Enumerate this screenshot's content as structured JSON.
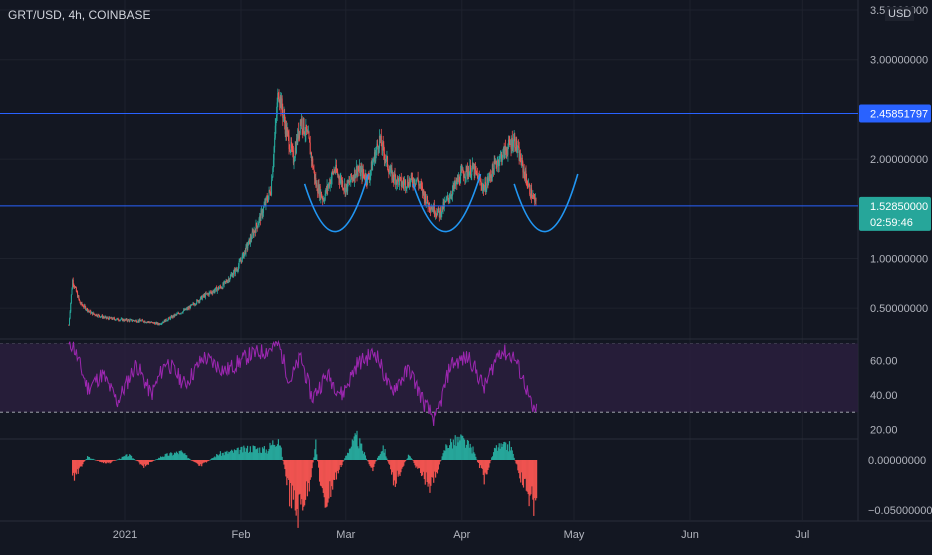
{
  "header": {
    "symbol": "GRT/USD, 4h, COINBASE",
    "currency": "USD"
  },
  "colors": {
    "background": "#131722",
    "grid": "#1e222d",
    "axis_text": "#b2b5be",
    "up": "#26a69a",
    "down": "#ef5350",
    "level_line": "#2962ff",
    "pattern": "#2196f3",
    "rsi": "#9c27b0",
    "rsi_band": "#2a1f3d",
    "price_tag": "#2962ff",
    "last_tag": "#26a69a"
  },
  "chart_data": [
    {
      "type": "candlestick",
      "name": "price",
      "ylim": [
        0.3,
        3.5
      ],
      "y_ticks": [
        {
          "value": 3.5,
          "label": "3.50000000"
        },
        {
          "value": 3.0,
          "label": "3.00000000"
        },
        {
          "value": 2.0,
          "label": "2.00000000"
        },
        {
          "value": 1.0,
          "label": "1.00000000"
        },
        {
          "value": 0.5,
          "label": "0.50000000"
        }
      ],
      "x_ticks": [
        "2021",
        "Feb",
        "Mar",
        "Apr",
        "May",
        "Jun",
        "Jul"
      ],
      "close_path": [
        [
          "2020-12-17",
          0.33
        ],
        [
          "2020-12-18",
          0.78
        ],
        [
          "2020-12-20",
          0.55
        ],
        [
          "2020-12-23",
          0.45
        ],
        [
          "2020-12-27",
          0.4
        ],
        [
          "2021-01-01",
          0.38
        ],
        [
          "2021-01-06",
          0.37
        ],
        [
          "2021-01-10",
          0.34
        ],
        [
          "2021-01-13",
          0.4
        ],
        [
          "2021-01-18",
          0.5
        ],
        [
          "2021-01-22",
          0.62
        ],
        [
          "2021-01-27",
          0.72
        ],
        [
          "2021-01-31",
          0.9
        ],
        [
          "2021-02-03",
          1.15
        ],
        [
          "2021-02-06",
          1.4
        ],
        [
          "2021-02-09",
          1.7
        ],
        [
          "2021-02-11",
          2.7
        ],
        [
          "2021-02-13",
          2.3
        ],
        [
          "2021-02-15",
          2.0
        ],
        [
          "2021-02-17",
          2.4
        ],
        [
          "2021-02-19",
          2.2
        ],
        [
          "2021-02-21",
          1.75
        ],
        [
          "2021-02-23",
          1.6
        ],
        [
          "2021-02-26",
          1.9
        ],
        [
          "2021-03-01",
          1.7
        ],
        [
          "2021-03-04",
          1.9
        ],
        [
          "2021-03-07",
          1.8
        ],
        [
          "2021-03-10",
          2.2
        ],
        [
          "2021-03-13",
          1.85
        ],
        [
          "2021-03-16",
          1.75
        ],
        [
          "2021-03-20",
          1.8
        ],
        [
          "2021-03-23",
          1.55
        ],
        [
          "2021-03-26",
          1.45
        ],
        [
          "2021-03-29",
          1.65
        ],
        [
          "2021-04-01",
          1.85
        ],
        [
          "2021-04-04",
          1.9
        ],
        [
          "2021-04-07",
          1.7
        ],
        [
          "2021-04-10",
          1.95
        ],
        [
          "2021-04-13",
          2.1
        ],
        [
          "2021-04-15",
          2.2
        ],
        [
          "2021-04-17",
          1.95
        ],
        [
          "2021-04-19",
          1.7
        ],
        [
          "2021-04-21",
          1.53
        ]
      ],
      "levels": [
        {
          "value": 2.45851797,
          "label": "2.45851797"
        },
        {
          "value": 1.5285,
          "label": "1.52850000",
          "countdown": "02:59:46"
        }
      ],
      "pattern_arcs": [
        {
          "from": "2021-02-18",
          "to": "2021-03-07"
        },
        {
          "from": "2021-03-19",
          "to": "2021-04-06"
        },
        {
          "from": "2021-04-15",
          "to": "2021-05-02"
        }
      ]
    },
    {
      "type": "line",
      "name": "rsi",
      "ylim": [
        15,
        72
      ],
      "band": [
        30,
        70
      ],
      "y_ticks": [
        {
          "value": 60,
          "label": "60.00"
        },
        {
          "value": 40,
          "label": "40.00"
        },
        {
          "value": 20,
          "label": "20.00"
        }
      ],
      "values": [
        [
          "2020-12-17",
          68
        ],
        [
          "2020-12-18",
          70
        ],
        [
          "2020-12-22",
          44
        ],
        [
          "2020-12-26",
          52
        ],
        [
          "2020-12-30",
          36
        ],
        [
          "2021-01-04",
          58
        ],
        [
          "2021-01-08",
          40
        ],
        [
          "2021-01-12",
          60
        ],
        [
          "2021-01-17",
          46
        ],
        [
          "2021-01-22",
          62
        ],
        [
          "2021-01-28",
          54
        ],
        [
          "2021-02-03",
          63
        ],
        [
          "2021-02-08",
          66
        ],
        [
          "2021-02-11",
          70
        ],
        [
          "2021-02-14",
          48
        ],
        [
          "2021-02-17",
          62
        ],
        [
          "2021-02-20",
          38
        ],
        [
          "2021-02-24",
          52
        ],
        [
          "2021-02-28",
          40
        ],
        [
          "2021-03-04",
          58
        ],
        [
          "2021-03-09",
          65
        ],
        [
          "2021-03-13",
          42
        ],
        [
          "2021-03-18",
          55
        ],
        [
          "2021-03-22",
          35
        ],
        [
          "2021-03-25",
          25
        ],
        [
          "2021-03-29",
          58
        ],
        [
          "2021-04-03",
          62
        ],
        [
          "2021-04-07",
          44
        ],
        [
          "2021-04-11",
          66
        ],
        [
          "2021-04-15",
          62
        ],
        [
          "2021-04-18",
          46
        ],
        [
          "2021-04-20",
          30
        ],
        [
          "2021-04-21",
          33
        ]
      ]
    },
    {
      "type": "bar",
      "name": "histogram",
      "ylim": [
        -0.06,
        0.02
      ],
      "y_ticks": [
        {
          "value": 0.0,
          "label": "0.00000000"
        },
        {
          "value": -0.05,
          "label": "−0.05000000"
        }
      ],
      "values": [
        [
          "2020-12-18",
          -0.018
        ],
        [
          "2020-12-22",
          0.003
        ],
        [
          "2020-12-27",
          -0.004
        ],
        [
          "2021-01-02",
          0.005
        ],
        [
          "2021-01-06",
          -0.006
        ],
        [
          "2021-01-11",
          0.004
        ],
        [
          "2021-01-16",
          0.008
        ],
        [
          "2021-01-21",
          -0.007
        ],
        [
          "2021-01-26",
          0.006
        ],
        [
          "2021-01-31",
          0.009
        ],
        [
          "2021-02-04",
          0.012
        ],
        [
          "2021-02-08",
          0.01
        ],
        [
          "2021-02-11",
          0.024
        ],
        [
          "2021-02-14",
          -0.035
        ],
        [
          "2021-02-16",
          -0.055
        ],
        [
          "2021-02-19",
          -0.03
        ],
        [
          "2021-02-21",
          0.015
        ],
        [
          "2021-02-23",
          -0.05
        ],
        [
          "2021-02-26",
          -0.02
        ],
        [
          "2021-03-02",
          0.012
        ],
        [
          "2021-03-04",
          0.022
        ],
        [
          "2021-03-08",
          -0.01
        ],
        [
          "2021-03-11",
          0.014
        ],
        [
          "2021-03-14",
          -0.022
        ],
        [
          "2021-03-18",
          0.006
        ],
        [
          "2021-03-21",
          -0.014
        ],
        [
          "2021-03-24",
          -0.026
        ],
        [
          "2021-03-28",
          0.016
        ],
        [
          "2021-04-01",
          0.02
        ],
        [
          "2021-04-04",
          0.01
        ],
        [
          "2021-04-07",
          -0.018
        ],
        [
          "2021-04-10",
          0.012
        ],
        [
          "2021-04-14",
          0.014
        ],
        [
          "2021-04-17",
          -0.02
        ],
        [
          "2021-04-20",
          -0.045
        ],
        [
          "2021-04-21",
          -0.03
        ]
      ]
    }
  ]
}
